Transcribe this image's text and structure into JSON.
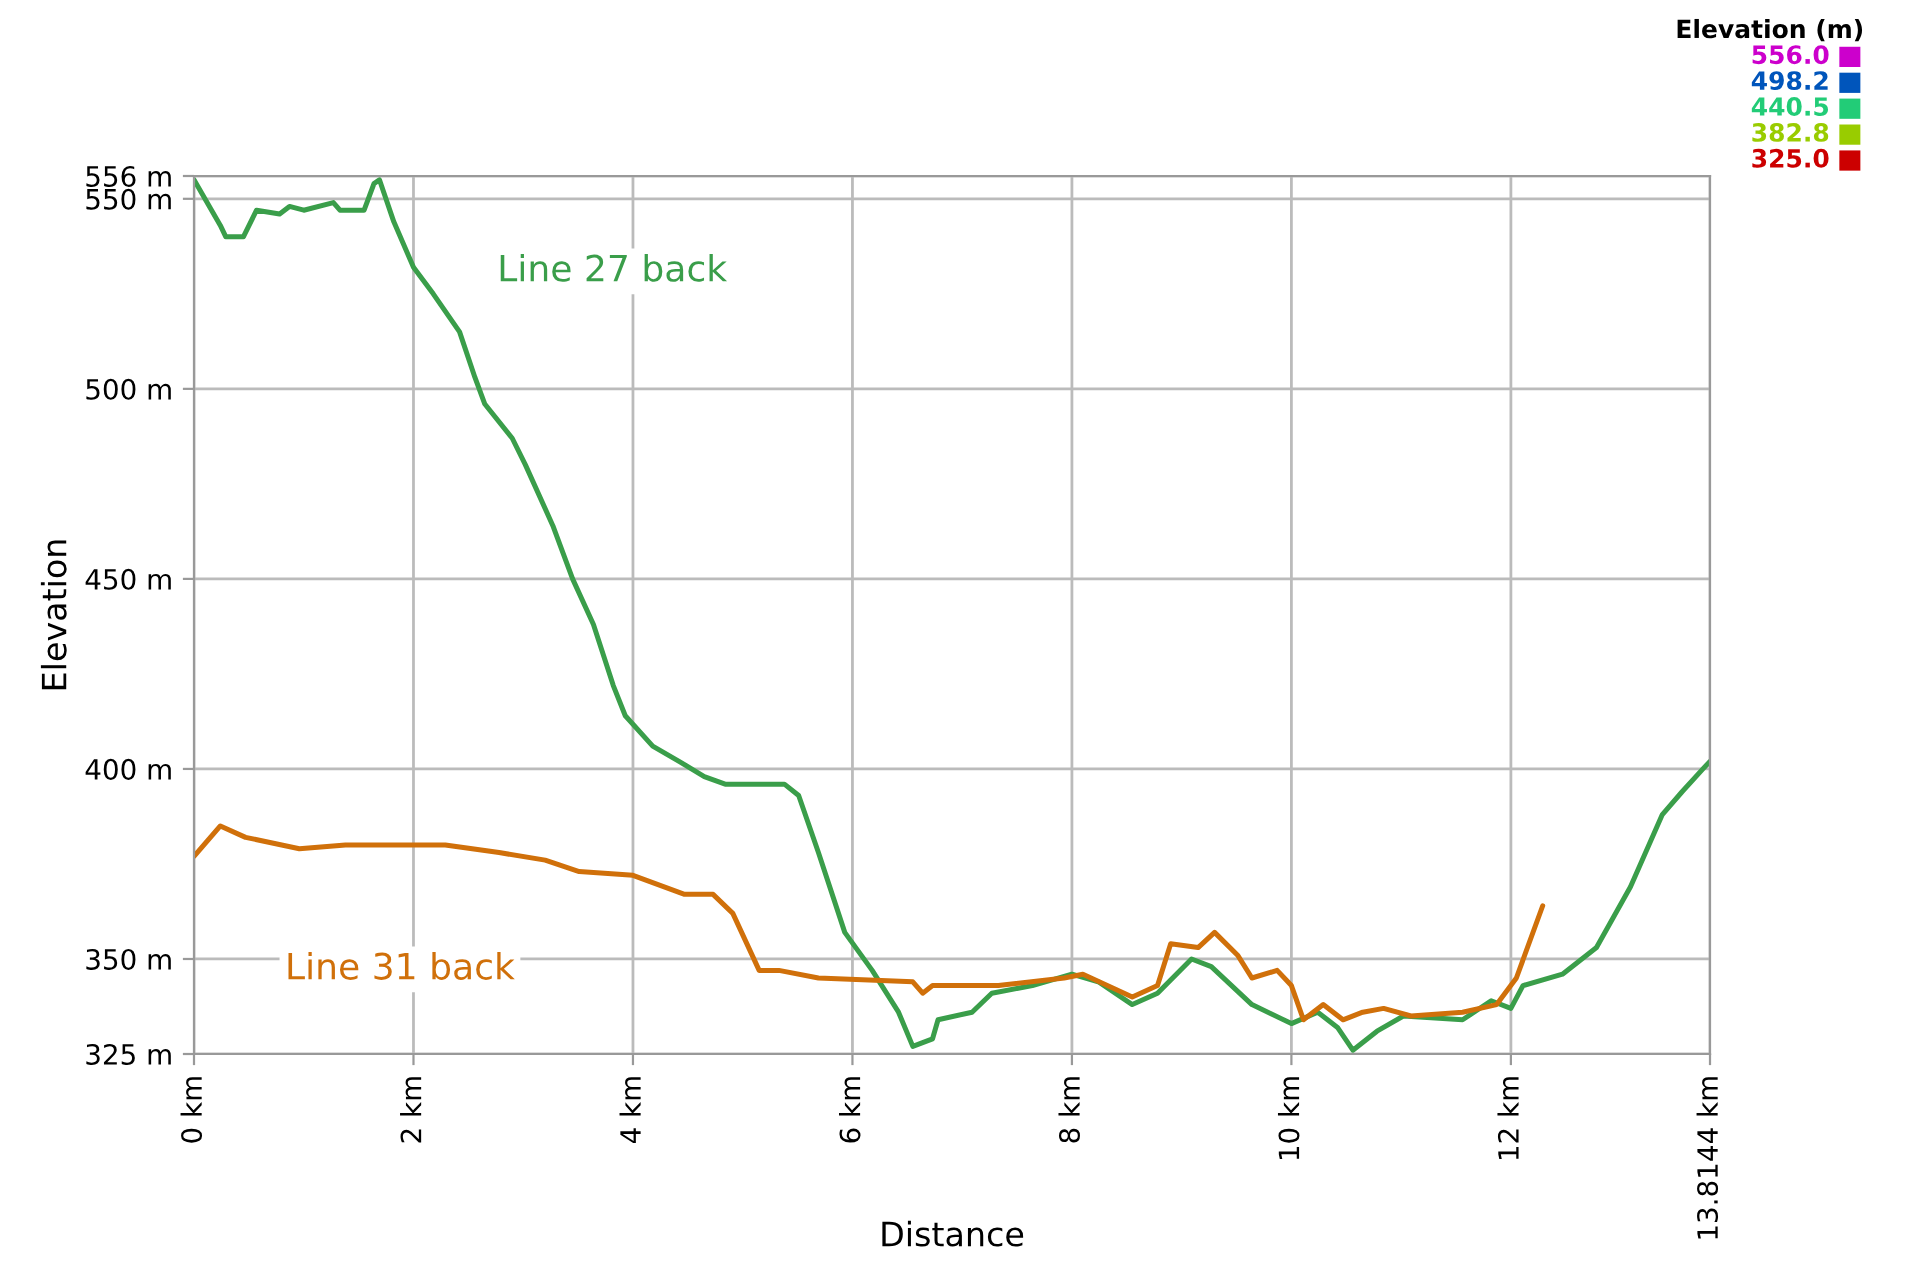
{
  "chart_data": {
    "type": "line",
    "xlabel": "Distance",
    "ylabel": "Elevation",
    "annotations": [
      "Elevation (m)",
      "556.0",
      "498.2",
      "440.5",
      "382.8",
      "325.0"
    ],
    "xlim": [
      0,
      13.8144
    ],
    "ylim": [
      325,
      556
    ],
    "xticks": [
      {
        "value": 0,
        "label": "0 km"
      },
      {
        "value": 2,
        "label": "2 km"
      },
      {
        "value": 4,
        "label": "4 km"
      },
      {
        "value": 6,
        "label": "6 km"
      },
      {
        "value": 8,
        "label": "8 km"
      },
      {
        "value": 10,
        "label": "10 km"
      },
      {
        "value": 12,
        "label": "12 km"
      },
      {
        "value": 13.8144,
        "label": "13.8144 km"
      }
    ],
    "yticks": [
      {
        "value": 325,
        "label": "325 m"
      },
      {
        "value": 350,
        "label": "350 m"
      },
      {
        "value": 400,
        "label": "400 m"
      },
      {
        "value": 450,
        "label": "450 m"
      },
      {
        "value": 500,
        "label": "500 m"
      },
      {
        "value": 550,
        "label": "550 m"
      },
      {
        "value": 556,
        "label": "556 m"
      }
    ],
    "grid": true,
    "marker": "none",
    "line_style": "solid",
    "series": [
      {
        "name": "Line 27 back",
        "color": "#3a9e4a",
        "x": [
          0,
          0.24,
          0.29,
          0.45,
          0.57,
          0.78,
          0.87,
          1.0,
          1.27,
          1.33,
          1.55,
          1.64,
          1.69,
          1.82,
          2.0,
          2.18,
          2.42,
          2.56,
          2.65,
          2.9,
          3.02,
          3.27,
          3.45,
          3.64,
          3.82,
          3.93,
          4.18,
          4.42,
          4.65,
          4.84,
          5.2,
          5.38,
          5.51,
          5.69,
          5.93,
          6.18,
          6.42,
          6.55,
          6.73,
          6.78,
          7.09,
          7.27,
          7.64,
          8.0,
          8.24,
          8.55,
          8.78,
          9.09,
          9.27,
          9.64,
          10.0,
          10.24,
          10.42,
          10.56,
          10.78,
          11.02,
          11.56,
          11.82,
          12.0,
          12.11,
          12.47,
          12.78,
          13.09,
          13.38,
          13.56,
          13.75,
          13.8144
        ],
        "values": [
          555,
          543,
          540,
          540,
          547,
          546,
          548,
          547,
          549,
          547,
          547,
          554,
          555,
          544,
          532,
          525,
          515,
          503,
          496,
          487,
          480,
          464,
          450,
          438,
          422,
          414,
          406,
          402,
          398,
          396,
          396,
          396,
          393,
          378,
          357,
          347,
          336,
          327,
          329,
          334,
          336,
          341,
          343,
          346,
          344,
          338,
          341,
          350,
          348,
          338,
          333,
          336,
          332,
          326,
          331,
          335,
          334,
          339,
          337,
          343,
          346,
          353,
          369,
          388,
          394,
          400,
          402
        ]
      },
      {
        "name": "Line 31 back",
        "color": "#d0700a",
        "x": [
          0,
          0.24,
          0.47,
          0.96,
          1.38,
          2.29,
          2.78,
          3.2,
          3.51,
          4.0,
          4.47,
          4.73,
          4.91,
          5.15,
          5.33,
          5.69,
          6.55,
          6.64,
          6.73,
          7.33,
          7.93,
          8.1,
          8.55,
          8.78,
          8.9,
          9.15,
          9.3,
          9.51,
          9.64,
          9.87,
          10.0,
          10.11,
          10.29,
          10.47,
          10.65,
          10.84,
          11.09,
          11.56,
          11.87,
          12.05,
          12.29
        ],
        "values": [
          377,
          385,
          382,
          379,
          380,
          380,
          378,
          376,
          373,
          372,
          367,
          367,
          362,
          347,
          347,
          345,
          344,
          341,
          343,
          343,
          345,
          346,
          340,
          343,
          354,
          353,
          357,
          351,
          345,
          347,
          343,
          334,
          338,
          334,
          336,
          337,
          335,
          336,
          338,
          345,
          364
        ]
      }
    ]
  }
}
